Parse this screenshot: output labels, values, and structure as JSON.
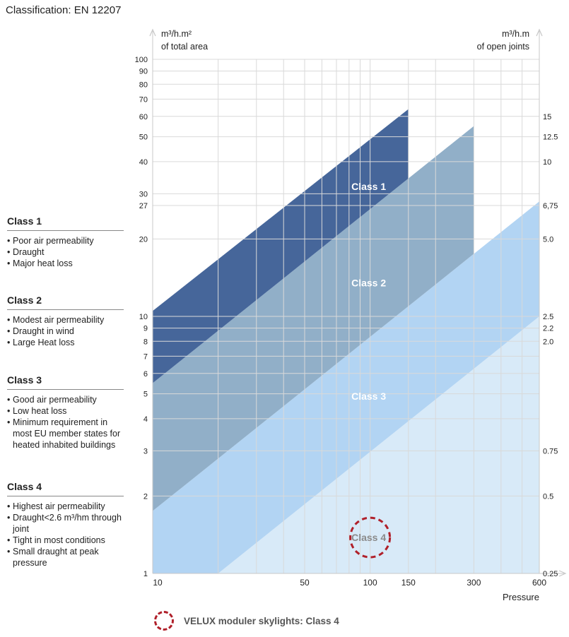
{
  "page": {
    "title": "Classification: EN 12207"
  },
  "chart_data": {
    "type": "area",
    "x": {
      "label": "Pressure",
      "scale": "log",
      "range": [
        10,
        600
      ],
      "ticks": [
        10,
        50,
        100,
        150,
        300,
        600
      ],
      "grid": [
        10,
        20,
        30,
        40,
        50,
        60,
        70,
        80,
        90,
        100,
        150,
        200,
        300,
        400,
        500,
        600
      ]
    },
    "y_left": {
      "label_line1": "m³/h.m²",
      "label_line2": "of total area",
      "scale": "log",
      "range": [
        1,
        100
      ],
      "ticks": [
        1,
        2,
        3,
        4,
        5,
        6,
        7,
        8,
        9,
        10,
        20,
        27,
        30,
        40,
        50,
        60,
        70,
        80,
        90,
        100
      ]
    },
    "y_right": {
      "label_line1": "m³/h.m",
      "label_line2": "of open joints",
      "ticks": [
        {
          "label": "15",
          "at": 60
        },
        {
          "label": "12.5",
          "at": 50
        },
        {
          "label": "10",
          "at": 40
        },
        {
          "label": "6,75",
          "at": 27
        },
        {
          "label": "5.0",
          "at": 20
        },
        {
          "label": "2.5",
          "at": 10
        },
        {
          "label": "2.2",
          "at": 9
        },
        {
          "label": "2.0",
          "at": 8
        },
        {
          "label": "0.75",
          "at": 3
        },
        {
          "label": "0.5",
          "at": 2
        },
        {
          "label": "0.25",
          "at": 1
        }
      ]
    },
    "grid": true,
    "series": [
      {
        "name": "Class 1",
        "color": "#46669a",
        "x_start": 10,
        "x_end": 150,
        "upper_at_10": 10.5,
        "upper_at_x_end": 64,
        "lower_at_10": 5.5,
        "label_at": [
          100,
          32
        ]
      },
      {
        "name": "Class 2",
        "color": "#91afc8",
        "x_start": 10,
        "x_end": 300,
        "upper_at_10": 5.5,
        "upper_at_x_end": 55,
        "lower_at_10": 1.75,
        "label_at": [
          100,
          13.5
        ]
      },
      {
        "name": "Class 3",
        "color": "#b2d4f3",
        "x_start": 10,
        "x_end": 600,
        "upper_at_10": 1.75,
        "upper_at_x_end": 28,
        "lower_at_20": 1,
        "label_at": [
          100,
          4.9
        ]
      },
      {
        "name": "Class 4",
        "color": "#d8eaf8",
        "x_start": 20,
        "x_end": 600,
        "upper_at_20": 1,
        "upper_at_x_end": 10,
        "label_at": [
          100,
          1.38
        ]
      }
    ],
    "annotation": {
      "text": "Class 4",
      "marker": "dashed-circle",
      "color": "#b0202a"
    }
  },
  "classes": [
    {
      "name": "Class 1",
      "bullets": [
        "Poor air permeability",
        "Draught",
        "Major heat loss"
      ]
    },
    {
      "name": "Class 2",
      "bullets": [
        "Modest air permeability",
        "Draught in wind",
        "Large Heat loss"
      ]
    },
    {
      "name": "Class 3",
      "bullets": [
        "Good air permeability",
        "Low heat loss",
        "Minimum requirement in most EU member states for heated inhabited buildings"
      ]
    },
    {
      "name": "Class 4",
      "bullets": [
        "Highest air permeability",
        "Draught<2.6 m³/hm through joint",
        "Tight in most conditions",
        "Small draught at peak pressure"
      ]
    }
  ],
  "legend": {
    "velux_text": "VELUX moduler skylights: Class 4"
  }
}
